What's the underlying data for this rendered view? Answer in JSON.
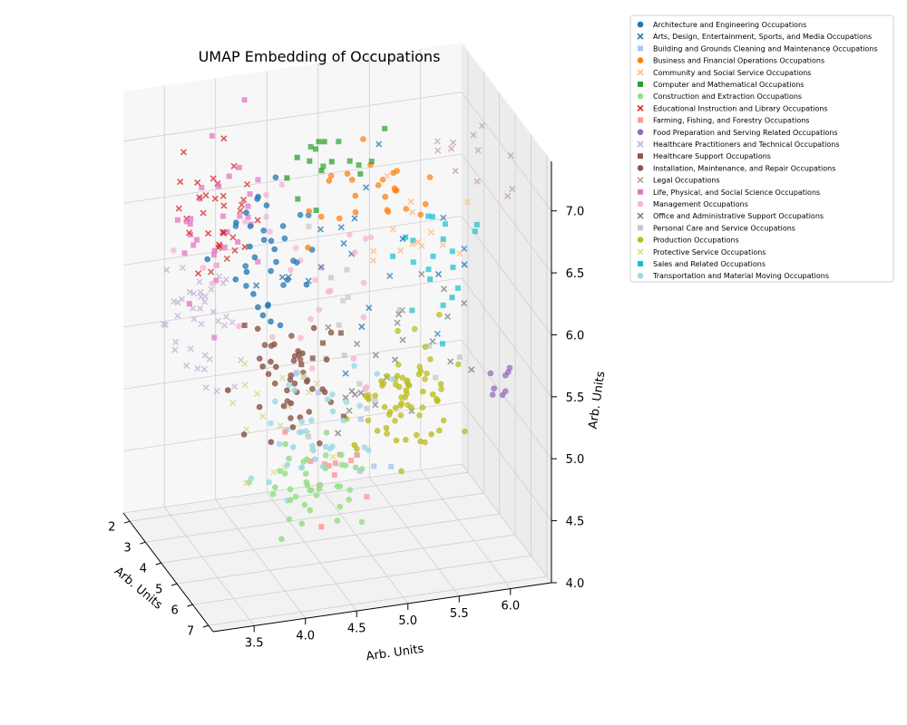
{
  "chart_data": {
    "type": "scatter",
    "title": "UMAP Embedding of Occupations",
    "xlabel": "Arb. Units",
    "ylabel": "Arb. Units",
    "zlabel": "Arb. Units",
    "xlim": [
      1.6,
      7.3
    ],
    "ylim": [
      3.1,
      6.4
    ],
    "zlim": [
      4.0,
      7.4
    ],
    "x_ticks": [
      "2",
      "3",
      "4",
      "5",
      "6",
      "7"
    ],
    "x_tick_values": [
      2,
      3,
      4,
      5,
      6,
      7
    ],
    "y_ticks": [
      "3.5",
      "4.0",
      "4.5",
      "5.0",
      "5.5",
      "6.0"
    ],
    "y_tick_values": [
      3.5,
      4.0,
      4.5,
      5.0,
      5.5,
      6.0
    ],
    "z_ticks": [
      "4.0",
      "4.5",
      "5.0",
      "5.5",
      "6.0",
      "6.5",
      "7.0"
    ],
    "z_tick_values": [
      4.0,
      4.5,
      5.0,
      5.5,
      6.0,
      6.5,
      7.0
    ],
    "grid": true,
    "legend_position": "upper-right-outside",
    "series": [
      {
        "name": "Architecture and Engineering Occupations",
        "marker": "circle",
        "color": "#1f77b4",
        "cluster": {
          "center": [
            2.8,
            4.3,
            6.2
          ],
          "spread": [
            0.7,
            0.4,
            0.5
          ],
          "count": 38
        }
      },
      {
        "name": "Arts, Design, Entertainment, Sports, and Media Occupations",
        "marker": "x",
        "color": "#1f77b4",
        "cluster": {
          "center": [
            4.2,
            5.1,
            6.3
          ],
          "spread": [
            1.5,
            0.9,
            0.6
          ],
          "count": 22
        }
      },
      {
        "name": "Building and Grounds Cleaning and Maintenance Occupations",
        "marker": "square",
        "color": "#aec7e8",
        "cluster": {
          "center": [
            5.0,
            4.8,
            5.0
          ],
          "spread": [
            1.4,
            0.8,
            0.5
          ],
          "count": 10
        }
      },
      {
        "name": "Business and Financial Operations Occupations",
        "marker": "circle",
        "color": "#ff7f0e",
        "cluster": {
          "center": [
            3.6,
            5.1,
            6.6
          ],
          "spread": [
            1.0,
            0.6,
            0.3
          ],
          "count": 26
        }
      },
      {
        "name": "Community and Social Service Occupations",
        "marker": "x",
        "color": "#ffbb78",
        "cluster": {
          "center": [
            4.8,
            5.5,
            6.6
          ],
          "spread": [
            1.0,
            0.5,
            0.3
          ],
          "count": 14
        }
      },
      {
        "name": "Computer and Mathematical Occupations",
        "marker": "square",
        "color": "#2ca02c",
        "cluster": {
          "center": [
            3.0,
            4.9,
            6.9
          ],
          "spread": [
            0.8,
            0.4,
            0.3
          ],
          "count": 18
        }
      },
      {
        "name": "Construction and Extraction Occupations",
        "marker": "circle",
        "color": "#98df8a",
        "cluster": {
          "center": [
            6.2,
            4.2,
            4.9
          ],
          "spread": [
            0.5,
            0.4,
            0.3
          ],
          "count": 40
        }
      },
      {
        "name": "Educational Instruction and Library Occupations",
        "marker": "x",
        "color": "#d62728",
        "cluster": {
          "center": [
            2.2,
            3.9,
            6.4
          ],
          "spread": [
            0.6,
            0.3,
            0.5
          ],
          "count": 34
        }
      },
      {
        "name": "Farming, Fishing, and Forestry Occupations",
        "marker": "square",
        "color": "#ff9896",
        "cluster": {
          "center": [
            5.8,
            4.6,
            4.8
          ],
          "spread": [
            0.6,
            0.4,
            0.3
          ],
          "count": 12
        }
      },
      {
        "name": "Food Preparation and Serving Related Occupations",
        "marker": "circle",
        "color": "#9467bd",
        "cluster": {
          "center": [
            4.9,
            6.3,
            5.2
          ],
          "spread": [
            0.2,
            0.1,
            0.1
          ],
          "count": 8
        }
      },
      {
        "name": "Healthcare Practitioners and Technical Occupations",
        "marker": "x",
        "color": "#c5b0d5",
        "cluster": {
          "center": [
            2.0,
            3.7,
            5.6
          ],
          "spread": [
            0.7,
            0.4,
            0.5
          ],
          "count": 40
        }
      },
      {
        "name": "Healthcare Support Occupations",
        "marker": "square",
        "color": "#8c564b",
        "cluster": {
          "center": [
            4.6,
            4.4,
            5.4
          ],
          "spread": [
            0.8,
            0.5,
            0.4
          ],
          "count": 6
        }
      },
      {
        "name": "Installation, Maintenance, and Repair Occupations",
        "marker": "circle",
        "color": "#8c564b",
        "cluster": {
          "center": [
            4.8,
            4.3,
            5.4
          ],
          "spread": [
            0.8,
            0.4,
            0.4
          ],
          "count": 44
        }
      },
      {
        "name": "Legal Occupations",
        "marker": "x",
        "color": "#c49c94",
        "cluster": {
          "center": [
            4.5,
            6.0,
            7.0
          ],
          "spread": [
            1.2,
            0.3,
            0.3
          ],
          "count": 12
        }
      },
      {
        "name": "Life, Physical, and Social Science Occupations",
        "marker": "square",
        "color": "#e377c2",
        "cluster": {
          "center": [
            2.0,
            3.9,
            6.3
          ],
          "spread": [
            0.7,
            0.4,
            0.6
          ],
          "count": 32
        }
      },
      {
        "name": "Management Occupations",
        "marker": "circle",
        "color": "#f7b6d2",
        "cluster": {
          "center": [
            3.6,
            4.7,
            6.2
          ],
          "spread": [
            1.6,
            0.8,
            0.6
          ],
          "count": 30
        }
      },
      {
        "name": "Office and Administrative Support Occupations",
        "marker": "x",
        "color": "#7f7f7f",
        "cluster": {
          "center": [
            4.8,
            5.3,
            5.6
          ],
          "spread": [
            1.2,
            0.6,
            0.5
          ],
          "count": 24
        }
      },
      {
        "name": "Personal Care and Service Occupations",
        "marker": "square",
        "color": "#c7c7c7",
        "cluster": {
          "center": [
            4.4,
            4.9,
            5.7
          ],
          "spread": [
            1.3,
            0.8,
            0.6
          ],
          "count": 16
        }
      },
      {
        "name": "Production Occupations",
        "marker": "circle",
        "color": "#bcbd22",
        "cluster": {
          "center": [
            5.0,
            5.3,
            5.3
          ],
          "spread": [
            0.8,
            0.4,
            0.3
          ],
          "count": 70
        }
      },
      {
        "name": "Protective Service Occupations",
        "marker": "x",
        "color": "#dbdb8d",
        "cluster": {
          "center": [
            4.8,
            4.0,
            5.2
          ],
          "spread": [
            1.4,
            0.5,
            0.5
          ],
          "count": 18
        }
      },
      {
        "name": "Sales and Related Occupations",
        "marker": "square",
        "color": "#17becf",
        "cluster": {
          "center": [
            4.2,
            5.7,
            6.1
          ],
          "spread": [
            1.0,
            0.5,
            0.5
          ],
          "count": 20
        }
      },
      {
        "name": "Transportation and Material Moving Occupations",
        "marker": "circle",
        "color": "#9edae5",
        "cluster": {
          "center": [
            5.6,
            4.3,
            5.1
          ],
          "spread": [
            0.9,
            0.5,
            0.4
          ],
          "count": 36
        }
      }
    ]
  }
}
